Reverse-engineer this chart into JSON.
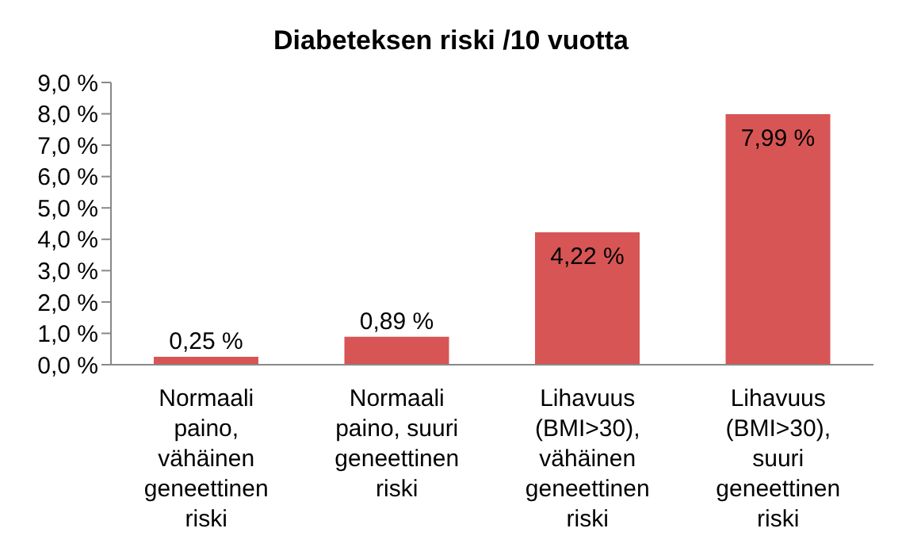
{
  "chart_data": {
    "type": "bar",
    "title": "Diabeteksen riski /10 vuotta",
    "categories": [
      "Normaali paino, vähäinen geneettinen riski",
      "Normaali paino, suuri geneettinen riski",
      "Lihavuus (BMI>30), vähäinen geneettinen riski",
      "Lihavuus (BMI>30), suuri geneettinen riski"
    ],
    "values": [
      0.25,
      0.89,
      4.22,
      7.99
    ],
    "value_labels": [
      "0,25 %",
      "0,89 %",
      "4,22 %",
      "7,99 %"
    ],
    "color": "#d85555",
    "ylim": [
      0,
      9
    ],
    "yticks": [
      {
        "value": 0,
        "label": "0,0 %"
      },
      {
        "value": 1,
        "label": "1,0 %"
      },
      {
        "value": 2,
        "label": "2,0 %"
      },
      {
        "value": 3,
        "label": "3,0 %"
      },
      {
        "value": 4,
        "label": "4,0 %"
      },
      {
        "value": 5,
        "label": "5,0 %"
      },
      {
        "value": 6,
        "label": "6,0 %"
      },
      {
        "value": 7,
        "label": "7,0 %"
      },
      {
        "value": 8,
        "label": "8,0 %"
      },
      {
        "value": 9,
        "label": "9,0 %"
      }
    ],
    "grid": false,
    "legend": false
  }
}
